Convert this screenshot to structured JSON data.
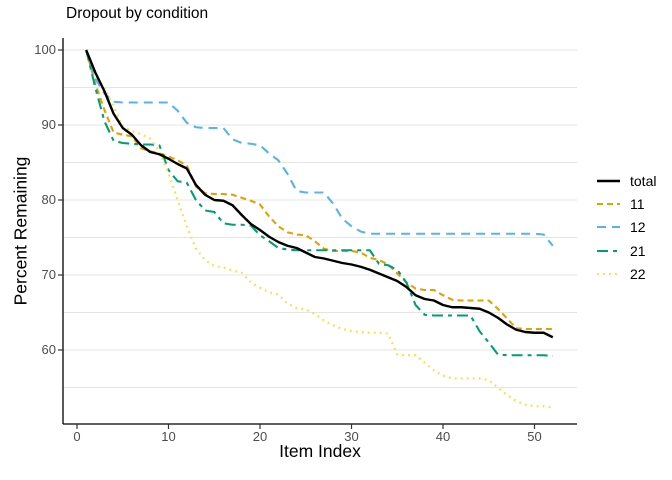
{
  "title": "Dropout by condition",
  "chart_data": {
    "type": "line",
    "title": "Dropout by condition",
    "xlabel": "Item Index",
    "ylabel": "Percent Remaining",
    "x_range": [
      1,
      52
    ],
    "xlim": [
      -1.5,
      54.6
    ],
    "ylim": [
      50,
      102
    ],
    "x_ticks": [
      0,
      10,
      20,
      30,
      40,
      50
    ],
    "y_ticks": [
      100,
      90,
      80,
      70,
      60
    ],
    "gridlines_y": [
      55,
      60,
      65,
      70,
      75,
      80,
      85,
      90,
      95,
      100
    ],
    "grid": "horizontal-only",
    "legend_position": "right",
    "axis_color": "#000000",
    "grid_color": "#e4e4e4",
    "tick_label_color": "#4d4d4d",
    "series": [
      {
        "name": "total",
        "color": "#000000",
        "dash": "solid",
        "width": 2.4,
        "values": [
          100,
          97.0,
          94.5,
          91.5,
          89.6,
          88.7,
          87.3,
          86.4,
          86.1,
          85.5,
          84.8,
          84.2,
          82.0,
          80.7,
          80.0,
          79.9,
          79.3,
          78.0,
          76.8,
          76.0,
          75.1,
          74.4,
          73.9,
          73.6,
          73.0,
          72.4,
          72.2,
          71.9,
          71.6,
          71.4,
          71.1,
          70.7,
          70.2,
          69.7,
          69.2,
          68.4,
          67.3,
          66.8,
          66.6,
          66.0,
          65.7,
          65.7,
          65.6,
          65.5,
          65.0,
          64.3,
          63.4,
          62.7,
          62.4,
          62.3,
          62.3,
          61.7
        ]
      },
      {
        "name": "11",
        "color": "#E69F00",
        "dash": "6 4",
        "width": 2.1,
        "values": [
          100,
          95.5,
          92.0,
          89.0,
          88.7,
          88.5,
          86.9,
          86.5,
          86.2,
          85.8,
          85.3,
          84.6,
          81.8,
          80.9,
          80.8,
          80.8,
          80.7,
          80.3,
          79.9,
          79.4,
          77.8,
          76.5,
          75.7,
          75.4,
          75.3,
          74.5,
          73.5,
          73.2,
          73.2,
          73.2,
          73.0,
          72.3,
          72.0,
          71.4,
          70.2,
          69.0,
          68.2,
          68.0,
          68.0,
          67.3,
          66.7,
          66.6,
          66.6,
          66.6,
          66.6,
          65.5,
          64.2,
          62.9,
          62.8,
          62.8,
          62.8,
          62.8
        ]
      },
      {
        "name": "12",
        "color": "#56B4E9",
        "dash": "9 6",
        "width": 2.1,
        "values": [
          100,
          96.2,
          94.2,
          93.1,
          93.0,
          93.0,
          93.0,
          93.0,
          93.0,
          93.0,
          91.9,
          90.3,
          89.7,
          89.6,
          89.6,
          89.6,
          88.1,
          87.6,
          87.5,
          87.3,
          86.2,
          85.3,
          83.5,
          81.2,
          81.0,
          81.0,
          81.0,
          79.5,
          77.5,
          76.5,
          75.8,
          75.5,
          75.5,
          75.5,
          75.5,
          75.5,
          75.5,
          75.5,
          75.5,
          75.5,
          75.5,
          75.5,
          75.5,
          75.5,
          75.5,
          75.5,
          75.5,
          75.5,
          75.5,
          75.5,
          75.4,
          73.9
        ]
      },
      {
        "name": "21",
        "color": "#009E73",
        "dash": "11 5 4 5",
        "width": 2.1,
        "values": [
          100,
          95.0,
          90.5,
          87.9,
          87.6,
          87.5,
          87.4,
          87.4,
          87.3,
          84.0,
          82.5,
          82.3,
          80.0,
          78.6,
          78.4,
          76.9,
          76.7,
          76.7,
          76.6,
          75.3,
          74.5,
          73.6,
          73.4,
          73.3,
          73.3,
          73.3,
          73.3,
          73.3,
          73.3,
          73.3,
          73.3,
          73.3,
          71.5,
          71.3,
          70.7,
          69.0,
          66.0,
          64.7,
          64.6,
          64.6,
          64.6,
          64.6,
          64.6,
          62.5,
          61.0,
          59.4,
          59.3,
          59.3,
          59.3,
          59.3,
          59.3,
          59.2
        ]
      },
      {
        "name": "22",
        "color": "#F0E442",
        "dash": "1.8 4.2",
        "width": 2.2,
        "values": [
          100,
          96.8,
          94.9,
          92.5,
          89.8,
          89.2,
          88.8,
          88.2,
          86.5,
          83.5,
          80.0,
          76.5,
          73.5,
          72.0,
          71.2,
          71.0,
          70.6,
          70.3,
          69.0,
          68.3,
          67.7,
          67.4,
          66.2,
          65.6,
          65.4,
          64.8,
          63.9,
          63.3,
          62.8,
          62.5,
          62.4,
          62.3,
          62.3,
          62.2,
          59.4,
          59.3,
          59.3,
          58.3,
          57.3,
          56.6,
          56.2,
          56.2,
          56.2,
          56.2,
          56.0,
          55.0,
          54.0,
          53.2,
          52.7,
          52.5,
          52.5,
          52.3
        ]
      }
    ]
  }
}
